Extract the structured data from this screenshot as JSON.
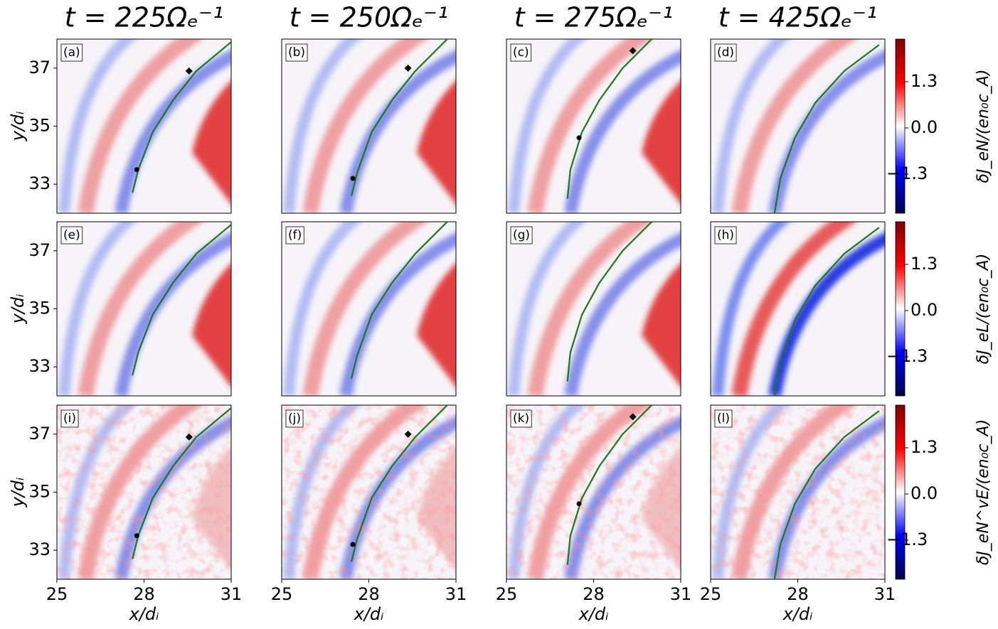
{
  "chart_data": [
    {
      "type": "heatmap",
      "title": "t = 225Ωₑ⁻¹",
      "panel_label": "(a)",
      "ylabel": "y/dᵢ",
      "xlim": [
        25,
        31
      ],
      "ylim": [
        32,
        38
      ],
      "yticks": [
        33,
        35,
        37
      ],
      "series": [
        {
          "color": "#1a7a1a",
          "x": [
            27.6,
            27.8,
            28.3,
            29.0,
            29.8,
            31.0
          ],
          "y": [
            32.7,
            33.5,
            34.8,
            35.9,
            36.9,
            37.9
          ]
        }
      ],
      "markers": [
        {
          "shape": "circle",
          "color": "#000000",
          "x": 27.75,
          "y": 33.5
        },
        {
          "shape": "diamond",
          "color": "#000000",
          "x": 29.55,
          "y": 36.9
        }
      ]
    },
    {
      "type": "heatmap",
      "title": "t = 250Ωₑ⁻¹",
      "panel_label": "(b)",
      "xlim": [
        25,
        31
      ],
      "ylim": [
        32,
        38
      ],
      "series": [
        {
          "color": "#1a7a1a",
          "x": [
            27.4,
            27.6,
            28.1,
            28.8,
            29.6,
            30.7
          ],
          "y": [
            32.6,
            33.4,
            34.8,
            35.9,
            36.9,
            38.0
          ]
        }
      ],
      "markers": [
        {
          "shape": "circle",
          "color": "#000000",
          "x": 27.45,
          "y": 33.2
        },
        {
          "shape": "diamond",
          "color": "#000000",
          "x": 29.35,
          "y": 37.0
        }
      ]
    },
    {
      "type": "heatmap",
      "title": "t = 275Ωₑ⁻¹",
      "panel_label": "(c)",
      "xlim": [
        25,
        31
      ],
      "ylim": [
        32,
        38
      ],
      "series": [
        {
          "color": "#1a7a1a",
          "x": [
            27.1,
            27.2,
            27.6,
            28.2,
            29.0,
            30.0
          ],
          "y": [
            32.5,
            33.5,
            34.8,
            35.9,
            37.0,
            38.0
          ]
        }
      ],
      "markers": [
        {
          "shape": "circle",
          "color": "#000000",
          "x": 27.5,
          "y": 34.6
        },
        {
          "shape": "diamond",
          "color": "#000000",
          "x": 29.35,
          "y": 37.6
        }
      ]
    },
    {
      "type": "heatmap",
      "title": "t = 425Ωₑ⁻¹",
      "panel_label": "(d)",
      "xlim": [
        25,
        31
      ],
      "ylim": [
        32,
        38
      ],
      "series": [
        {
          "color": "#1a7a1a",
          "x": [
            27.2,
            27.4,
            27.9,
            28.6,
            29.6,
            30.8
          ],
          "y": [
            32.0,
            33.2,
            34.6,
            35.8,
            36.9,
            37.8
          ]
        }
      ]
    },
    {
      "type": "heatmap",
      "panel_label": "(e)",
      "ylabel": "y/dᵢ",
      "xlim": [
        25,
        31
      ],
      "ylim": [
        32,
        38
      ],
      "yticks": [
        33,
        35,
        37
      ],
      "series": [
        {
          "color": "#1a7a1a",
          "x": [
            27.6,
            27.8,
            28.3,
            29.0,
            29.8,
            31.0
          ],
          "y": [
            32.7,
            33.5,
            34.8,
            35.9,
            36.9,
            37.9
          ]
        }
      ]
    },
    {
      "type": "heatmap",
      "panel_label": "(f)",
      "xlim": [
        25,
        31
      ],
      "ylim": [
        32,
        38
      ],
      "series": [
        {
          "color": "#1a7a1a",
          "x": [
            27.4,
            27.6,
            28.1,
            28.8,
            29.6,
            30.7
          ],
          "y": [
            32.6,
            33.4,
            34.8,
            35.9,
            36.9,
            38.0
          ]
        }
      ]
    },
    {
      "type": "heatmap",
      "panel_label": "(g)",
      "xlim": [
        25,
        31
      ],
      "ylim": [
        32,
        38
      ],
      "series": [
        {
          "color": "#1a7a1a",
          "x": [
            27.1,
            27.2,
            27.6,
            28.2,
            29.0,
            30.0
          ],
          "y": [
            32.5,
            33.5,
            34.8,
            35.9,
            37.0,
            38.0
          ]
        }
      ]
    },
    {
      "type": "heatmap",
      "panel_label": "(h)",
      "xlim": [
        25,
        31
      ],
      "ylim": [
        32,
        38
      ],
      "series": [
        {
          "color": "#1a7a1a",
          "x": [
            27.2,
            27.4,
            27.9,
            28.6,
            29.6,
            30.8
          ],
          "y": [
            32.0,
            33.2,
            34.6,
            35.8,
            36.9,
            37.8
          ]
        }
      ]
    },
    {
      "type": "heatmap",
      "panel_label": "(i)",
      "xlabel": "x/dᵢ",
      "ylabel": "y/dᵢ",
      "xlim": [
        25,
        31
      ],
      "ylim": [
        32,
        38
      ],
      "xticks": [
        25,
        28,
        31
      ],
      "yticks": [
        33,
        35,
        37
      ],
      "series": [
        {
          "color": "#1a7a1a",
          "x": [
            27.6,
            27.8,
            28.3,
            29.0,
            29.8,
            31.0
          ],
          "y": [
            32.7,
            33.5,
            34.8,
            35.9,
            36.9,
            37.9
          ]
        }
      ],
      "markers": [
        {
          "shape": "circle",
          "color": "#000000",
          "x": 27.75,
          "y": 33.5
        },
        {
          "shape": "diamond",
          "color": "#000000",
          "x": 29.55,
          "y": 36.9
        }
      ]
    },
    {
      "type": "heatmap",
      "panel_label": "(j)",
      "xlabel": "x/dᵢ",
      "xlim": [
        25,
        31
      ],
      "ylim": [
        32,
        38
      ],
      "xticks": [
        25,
        28,
        31
      ],
      "series": [
        {
          "color": "#1a7a1a",
          "x": [
            27.4,
            27.6,
            28.1,
            28.8,
            29.6,
            30.7
          ],
          "y": [
            32.6,
            33.4,
            34.8,
            35.9,
            36.9,
            38.0
          ]
        }
      ],
      "markers": [
        {
          "shape": "circle",
          "color": "#000000",
          "x": 27.45,
          "y": 33.2
        },
        {
          "shape": "diamond",
          "color": "#000000",
          "x": 29.35,
          "y": 37.0
        }
      ]
    },
    {
      "type": "heatmap",
      "panel_label": "(k)",
      "xlabel": "x/dᵢ",
      "xlim": [
        25,
        31
      ],
      "ylim": [
        32,
        38
      ],
      "xticks": [
        25,
        28,
        31
      ],
      "series": [
        {
          "color": "#1a7a1a",
          "x": [
            27.1,
            27.2,
            27.6,
            28.2,
            29.0,
            30.0
          ],
          "y": [
            32.5,
            33.5,
            34.8,
            35.9,
            37.0,
            38.0
          ]
        }
      ],
      "markers": [
        {
          "shape": "circle",
          "color": "#000000",
          "x": 27.5,
          "y": 34.6
        },
        {
          "shape": "diamond",
          "color": "#000000",
          "x": 29.35,
          "y": 37.6
        }
      ]
    },
    {
      "type": "heatmap",
      "panel_label": "(l)",
      "xlabel": "x/dᵢ",
      "xlim": [
        25,
        31
      ],
      "ylim": [
        32,
        38
      ],
      "xticks": [
        25,
        28,
        31
      ],
      "series": [
        {
          "color": "#1a7a1a",
          "x": [
            27.2,
            27.4,
            27.9,
            28.6,
            29.6,
            30.8
          ],
          "y": [
            32.0,
            33.2,
            34.6,
            35.8,
            36.9,
            37.8
          ]
        }
      ]
    },
    {
      "type": "colorbar",
      "label": "δJ_eN/(en₀c_A)",
      "ylim": [
        -2.4,
        2.5
      ],
      "yticks": [
        1.3,
        {
          "value": 0,
          "label": "0.0"
        },
        {
          "value": -1.3,
          "label": "−1.3"
        }
      ],
      "colors": [
        "#00004c",
        "#0000ff",
        "#ffffff",
        "#ff0000",
        "#800000"
      ]
    },
    {
      "type": "colorbar",
      "label": "δJ_eL/(en₀c_A)",
      "ylim": [
        -2.4,
        2.5
      ],
      "yticks": [
        1.3,
        {
          "value": 0,
          "label": "0.0"
        },
        {
          "value": -1.3,
          "label": "−1.3"
        }
      ],
      "colors": [
        "#00004c",
        "#0000ff",
        "#ffffff",
        "#ff0000",
        "#800000"
      ]
    },
    {
      "type": "colorbar",
      "label": "δJ_eN^vE/(en₀c_A)",
      "ylim": [
        -2.4,
        2.5
      ],
      "yticks": [
        1.3,
        {
          "value": 0,
          "label": "0.0"
        },
        {
          "value": -1.3,
          "label": "−1.3"
        }
      ],
      "colors": [
        "#00004c",
        "#0000ff",
        "#ffffff",
        "#ff0000",
        "#800000"
      ]
    }
  ]
}
